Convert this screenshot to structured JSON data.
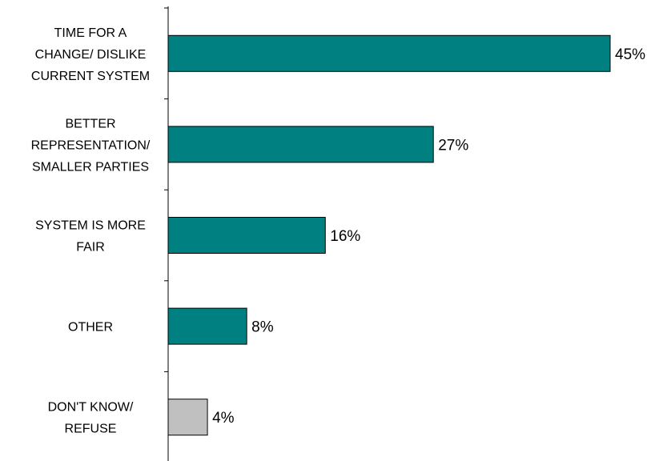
{
  "chart_data": {
    "type": "bar",
    "orientation": "horizontal",
    "categories": [
      "TIME FOR A CHANGE/ DISLIKE CURRENT SYSTEM",
      "BETTER REPRESENTATION/ SMALLER PARTIES",
      "SYSTEM IS MORE FAIR",
      "OTHER",
      "DON'T KNOW/ REFUSE"
    ],
    "category_lines": [
      [
        "TIME FOR A",
        "CHANGE/ DISLIKE",
        "CURRENT SYSTEM"
      ],
      [
        "BETTER",
        "REPRESENTATION/",
        "SMALLER PARTIES"
      ],
      [
        "SYSTEM IS MORE",
        "FAIR"
      ],
      [
        "OTHER"
      ],
      [
        "DON'T KNOW/",
        "REFUSE"
      ]
    ],
    "values": [
      45,
      27,
      16,
      8,
      4
    ],
    "value_labels": [
      "45%",
      "27%",
      "16%",
      "8%",
      "4%"
    ],
    "bar_colors": [
      "#008080",
      "#008080",
      "#008080",
      "#008080",
      "#c0c0c0"
    ],
    "xlim": [
      0,
      45
    ],
    "grid": false,
    "legend": "none",
    "title": "",
    "xlabel": "",
    "ylabel": ""
  }
}
